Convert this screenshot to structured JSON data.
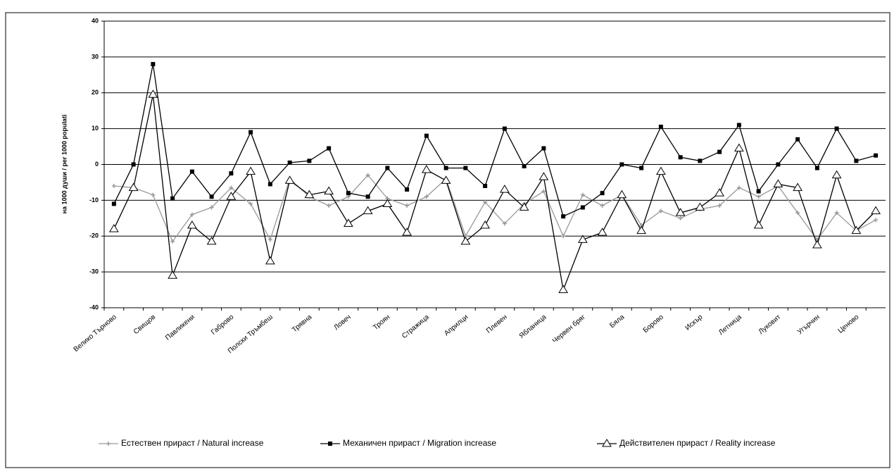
{
  "chart_data": {
    "type": "line",
    "y_label": "на 1000 души / per 1000 populati",
    "categories": [
      "Велико Търново",
      null,
      "Свищов",
      null,
      "Павликени",
      null,
      "Габрово",
      null,
      "Полски Тръмбеш",
      null,
      "Трявна",
      null,
      "Ловеч",
      null,
      "Троян",
      null,
      "Стражица",
      null,
      "Априлци",
      null,
      "Плевен",
      null,
      "Ябланица",
      null,
      "Червен бряг",
      null,
      "Бяла",
      null,
      "Борово",
      null,
      "Искър",
      null,
      "Летница",
      null,
      "Луковит",
      null,
      "Угърчин",
      null,
      "Ценово",
      null
    ],
    "series": [
      {
        "name": "Естествен прираст / Natural increase",
        "color": "#999999",
        "marker": "plus",
        "values": [
          -6,
          -6.5,
          -8.5,
          -21.5,
          -14,
          -12,
          -6.5,
          -11,
          -21,
          -4,
          -9,
          -11.5,
          -9,
          -3,
          -9.5,
          -11.5,
          -9,
          -4,
          -20,
          -10.5,
          -16.5,
          -11,
          -7.5,
          -20,
          -8.5,
          -11.5,
          -8.5,
          -17,
          -13,
          -15,
          -12.5,
          -11.5,
          -6.5,
          -9,
          -6,
          -13.5,
          -21,
          -13.5,
          -18.5,
          -15.5
        ]
      },
      {
        "name": "Механичен прираст / Migration increase",
        "color": "#000000",
        "marker": "square",
        "values": [
          -11,
          0,
          28,
          -9.5,
          -2,
          -9,
          -2.5,
          9,
          -5.5,
          0.5,
          1,
          4.5,
          -8,
          -9,
          -1,
          -7,
          8,
          -1,
          -1,
          -6,
          10,
          -0.5,
          4.5,
          -14.5,
          -12,
          -8,
          0,
          -1,
          10.5,
          2,
          1,
          3.5,
          11,
          -7.5,
          0,
          7,
          -1,
          10,
          1,
          2.5
        ]
      },
      {
        "name": "Действителен прираст / Reality increase",
        "color": "#000000",
        "marker": "triangle",
        "values": [
          -18,
          -6.5,
          19.5,
          -31,
          -17,
          -21.5,
          -9,
          -2,
          -27,
          -4.5,
          -8.5,
          -7.5,
          -16.5,
          -13,
          -11,
          -19,
          -1.5,
          -4.5,
          -21.5,
          -17,
          -7,
          -12,
          -3.5,
          -35,
          -21,
          -19,
          -8.5,
          -18.5,
          -2,
          -13.5,
          -12,
          -8,
          4.5,
          -17,
          -5.5,
          -6.5,
          -22.5,
          -3,
          -18.5,
          -13
        ]
      }
    ],
    "ylim": [
      -40,
      40
    ],
    "yticks": [
      -40,
      -30,
      -20,
      -10,
      0,
      10,
      20,
      30,
      40
    ],
    "grid": true,
    "legend": "bottom"
  }
}
